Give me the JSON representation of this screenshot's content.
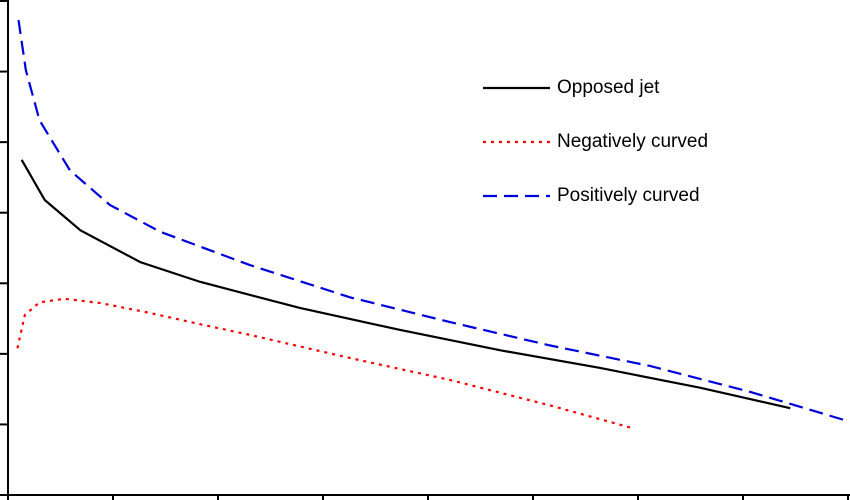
{
  "chart_data": {
    "type": "line",
    "legend": "upper right",
    "xlim": [
      0,
      8
    ],
    "xticks": [
      0,
      1,
      2,
      3,
      4,
      5,
      6,
      7,
      8
    ],
    "ylim": [
      0,
      7
    ],
    "yticks": [
      0,
      1,
      2,
      3,
      4,
      5,
      6,
      7
    ],
    "series": [
      {
        "name": "Opposed jet",
        "color": "#000000",
        "dash": "solid",
        "x": [
          0.13,
          0.35,
          0.69,
          1.26,
          1.83,
          2.78,
          3.73,
          4.69,
          5.64,
          6.59,
          7.45
        ],
        "values": [
          4.75,
          4.18,
          3.75,
          3.3,
          3.02,
          2.65,
          2.34,
          2.05,
          1.8,
          1.52,
          1.23
        ]
      },
      {
        "name": "Negatively curved",
        "color": "#ff0000",
        "dash": "dotted",
        "x": [
          0.09,
          0.16,
          0.3,
          0.54,
          0.88,
          1.35,
          1.83,
          2.3,
          3.26,
          4.21,
          5.16,
          5.94
        ],
        "values": [
          2.08,
          2.55,
          2.73,
          2.78,
          2.72,
          2.58,
          2.42,
          2.27,
          1.94,
          1.63,
          1.27,
          0.95
        ]
      },
      {
        "name": "Positively curved",
        "color": "#0000dd",
        "dash": "dashed",
        "x": [
          0.1,
          0.17,
          0.3,
          0.59,
          0.97,
          1.45,
          2.3,
          3.26,
          4.21,
          5.16,
          6.11,
          7.07,
          7.97
        ],
        "values": [
          6.73,
          6.02,
          5.31,
          4.6,
          4.11,
          3.73,
          3.26,
          2.8,
          2.45,
          2.12,
          1.83,
          1.46,
          1.06
        ]
      }
    ]
  }
}
